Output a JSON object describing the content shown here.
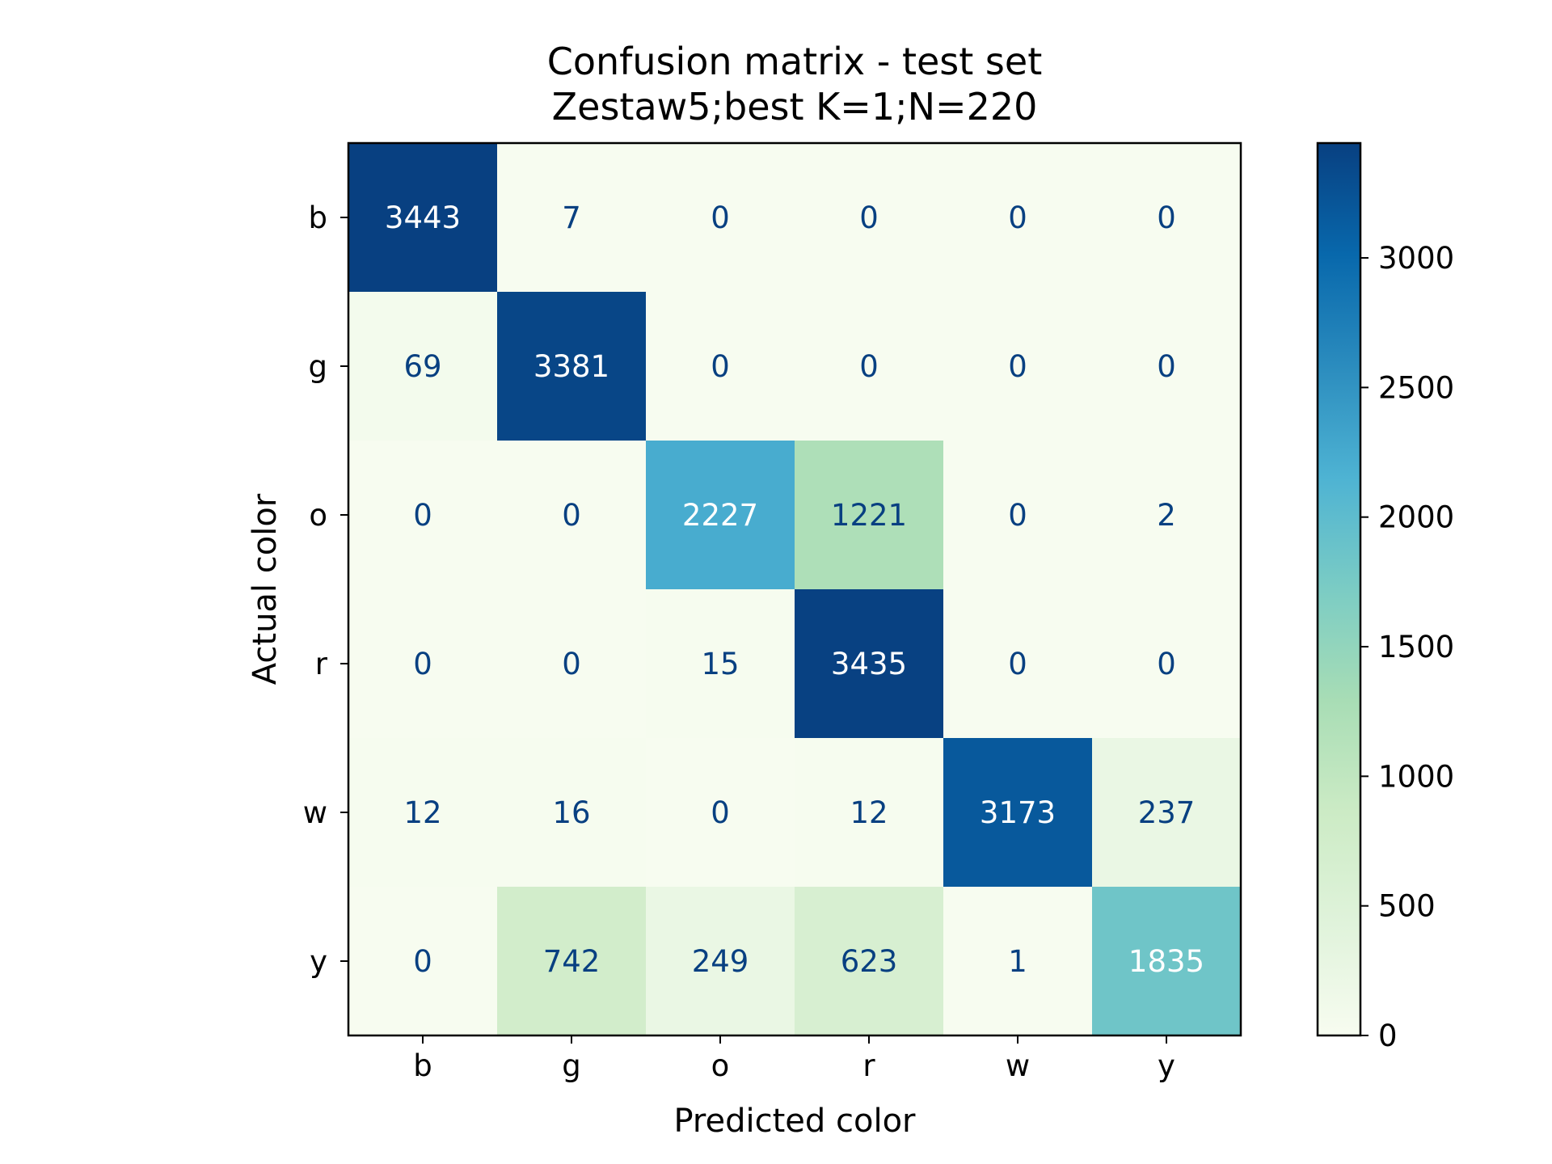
{
  "chart_data": {
    "type": "heatmap",
    "title": "Confusion matrix - test set",
    "subtitle": "Zestaw5;best K=1;N=220",
    "xlabel": "Predicted color",
    "ylabel": "Actual color",
    "x_categories": [
      "b",
      "g",
      "o",
      "r",
      "w",
      "y"
    ],
    "y_categories": [
      "b",
      "g",
      "o",
      "r",
      "w",
      "y"
    ],
    "values": [
      [
        3443,
        7,
        0,
        0,
        0,
        0
      ],
      [
        69,
        3381,
        0,
        0,
        0,
        0
      ],
      [
        0,
        0,
        2227,
        1221,
        0,
        2
      ],
      [
        0,
        0,
        15,
        3435,
        0,
        0
      ],
      [
        12,
        16,
        0,
        12,
        3173,
        237
      ],
      [
        0,
        742,
        249,
        623,
        1,
        1835
      ]
    ],
    "colorbar": {
      "min": 0,
      "max": 3443,
      "ticks": [
        0,
        500,
        1000,
        1500,
        2000,
        2500,
        3000
      ]
    },
    "colormap": [
      "#f7fcf0",
      "#e0f3db",
      "#ccebc5",
      "#a8ddb5",
      "#7bccc4",
      "#4eb3d3",
      "#2b8cbe",
      "#0868ac",
      "#084081"
    ],
    "grid": false
  }
}
